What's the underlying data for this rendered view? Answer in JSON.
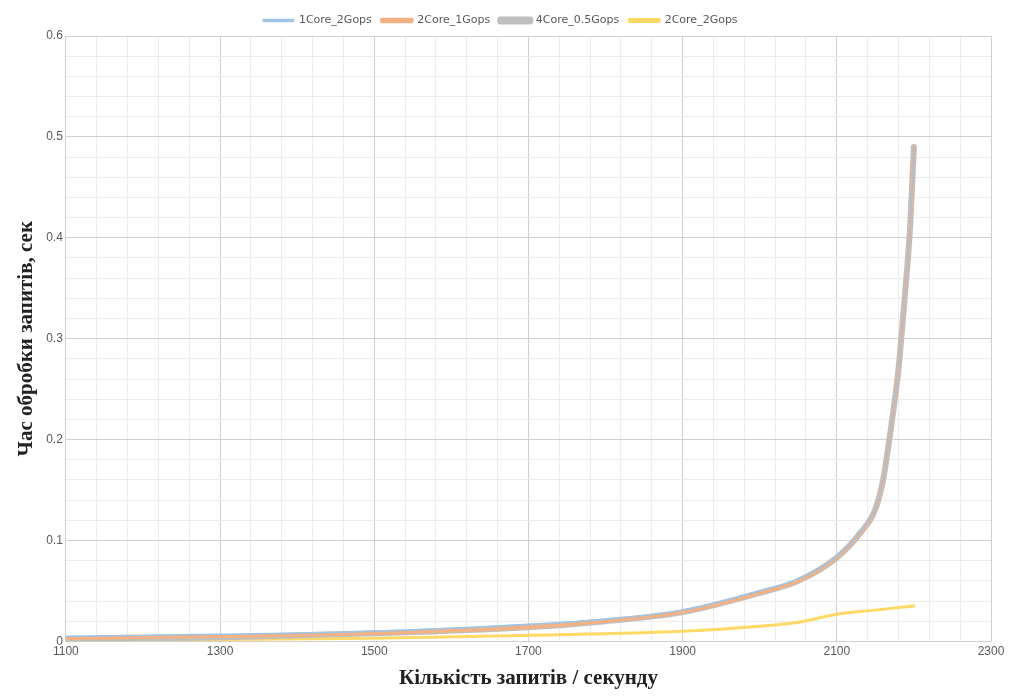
{
  "chart_data": {
    "type": "line",
    "xlabel": "Кількість запитів / секунду",
    "ylabel": "Час обробки запитів, сек",
    "xlim": [
      1100,
      2300
    ],
    "xticks": [
      1100,
      {
        "value": 1140,
        "label": null
      },
      {
        "value": 1180,
        "label": null
      },
      {
        "value": 1220,
        "label": null
      },
      {
        "value": 1260,
        "label": null
      },
      1300,
      {
        "value": 1340,
        "label": null
      },
      {
        "value": 1380,
        "label": null
      },
      {
        "value": 1420,
        "label": null
      },
      {
        "value": 1460,
        "label": null
      },
      1500,
      {
        "value": 1540,
        "label": null
      },
      {
        "value": 1580,
        "label": null
      },
      {
        "value": 1620,
        "label": null
      },
      {
        "value": 1660,
        "label": null
      },
      1700,
      {
        "value": 1740,
        "label": null
      },
      {
        "value": 1780,
        "label": null
      },
      {
        "value": 1820,
        "label": null
      },
      {
        "value": 1860,
        "label": null
      },
      1900,
      {
        "value": 1940,
        "label": null
      },
      {
        "value": 1980,
        "label": null
      },
      {
        "value": 2020,
        "label": null
      },
      {
        "value": 2060,
        "label": null
      },
      2100,
      {
        "value": 2140,
        "label": null
      },
      {
        "value": 2180,
        "label": null
      },
      {
        "value": 2220,
        "label": null
      },
      {
        "value": 2260,
        "label": null
      },
      2300
    ],
    "ylim": [
      0,
      0.6
    ],
    "yticks": [
      0,
      {
        "value": 0.02,
        "label": null
      },
      {
        "value": 0.04,
        "label": null
      },
      {
        "value": 0.06,
        "label": null
      },
      {
        "value": 0.08,
        "label": null
      },
      0.1,
      {
        "value": 0.12,
        "label": null
      },
      {
        "value": 0.14,
        "label": null
      },
      {
        "value": 0.16,
        "label": null
      },
      {
        "value": 0.18,
        "label": null
      },
      0.2,
      {
        "value": 0.22,
        "label": null
      },
      {
        "value": 0.24,
        "label": null
      },
      {
        "value": 0.26,
        "label": null
      },
      {
        "value": 0.28,
        "label": null
      },
      0.3,
      {
        "value": 0.32,
        "label": null
      },
      {
        "value": 0.34,
        "label": null
      },
      {
        "value": 0.36,
        "label": null
      },
      {
        "value": 0.38,
        "label": null
      },
      0.4,
      {
        "value": 0.42,
        "label": null
      },
      {
        "value": 0.44,
        "label": null
      },
      {
        "value": 0.46,
        "label": null
      },
      {
        "value": 0.48,
        "label": null
      },
      0.5,
      {
        "value": 0.52,
        "label": null
      },
      {
        "value": 0.54,
        "label": null
      },
      {
        "value": 0.56,
        "label": null
      },
      {
        "value": 0.58,
        "label": null
      },
      0.6
    ],
    "grid": true,
    "legend": "top",
    "marker": "none",
    "line_style": "solid",
    "x": [
      1100,
      1300,
      1500,
      1700,
      1800,
      1900,
      2000,
      2050,
      2100,
      2130,
      2150,
      2160,
      2170,
      2180,
      2188,
      2195,
      2200
    ],
    "series": [
      {
        "name": "1Core_2Gops",
        "color": "#9dc3e6",
        "values": [
          0.005,
          0.007,
          0.01,
          0.017,
          0.022,
          0.031,
          0.05,
          0.062,
          0.084,
          0.108,
          0.132,
          0.16,
          0.21,
          0.27,
          0.34,
          0.41,
          0.49
        ]
      },
      {
        "name": "2Core_1Gops",
        "color": "#f4b183",
        "values": [
          0.003,
          0.005,
          0.008,
          0.014,
          0.02,
          0.029,
          0.048,
          0.06,
          0.083,
          0.107,
          0.131,
          0.16,
          0.21,
          0.27,
          0.34,
          0.41,
          0.49
        ]
      },
      {
        "name": "4Core_0.5Gops",
        "color": "#bfbfbf",
        "values": [
          0.002,
          0.004,
          0.008,
          0.014,
          0.02,
          0.029,
          0.048,
          0.06,
          0.083,
          0.107,
          0.131,
          0.16,
          0.21,
          0.27,
          0.34,
          0.41,
          0.49
        ]
      },
      {
        "name": "2Core_2Gops",
        "color": "#ffd966",
        "x": [
          1100,
          1300,
          1500,
          1700,
          1900,
          2000,
          2050,
          2100,
          2150,
          2200
        ],
        "values": [
          0.001,
          0.002,
          0.003,
          0.006,
          0.01,
          0.015,
          0.019,
          0.027,
          0.031,
          0.035
        ]
      }
    ]
  }
}
